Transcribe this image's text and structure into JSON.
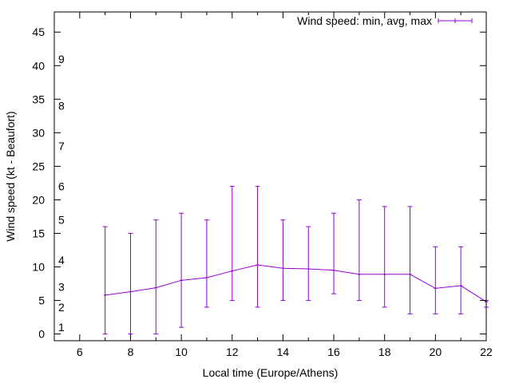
{
  "chart_data": {
    "type": "line",
    "title": "",
    "xlabel": "Local time (Europe/Athens)",
    "ylabel": "Wind speed (kt - Beaufort)",
    "xlim": [
      5,
      22
    ],
    "ylim": [
      -1,
      48
    ],
    "x_ticks": [
      6,
      8,
      10,
      12,
      14,
      16,
      18,
      20,
      22
    ],
    "y_ticks": [
      0,
      5,
      10,
      15,
      20,
      25,
      30,
      35,
      40,
      45
    ],
    "grid": false,
    "legend": {
      "position": "top-right",
      "label": "Wind speed: min, avg, max"
    },
    "beaufort_labels": [
      {
        "label": "1",
        "kt": 1
      },
      {
        "label": "2",
        "kt": 4
      },
      {
        "label": "3",
        "kt": 7
      },
      {
        "label": "4",
        "kt": 11
      },
      {
        "label": "5",
        "kt": 17
      },
      {
        "label": "6",
        "kt": 22
      },
      {
        "label": "7",
        "kt": 28
      },
      {
        "label": "8",
        "kt": 34
      },
      {
        "label": "9",
        "kt": 41
      }
    ],
    "series": [
      {
        "name": "Wind speed: min, avg, max",
        "color": "#9400d3",
        "x": [
          7,
          8,
          9,
          10,
          11,
          12,
          13,
          14,
          15,
          16,
          17,
          18,
          19,
          20,
          21,
          22
        ],
        "avg": [
          5.8,
          6.3,
          6.9,
          8.0,
          8.4,
          9.4,
          10.3,
          9.8,
          9.7,
          9.5,
          8.9,
          8.9,
          8.9,
          6.8,
          7.2,
          4.8
        ],
        "min": [
          0,
          0,
          0,
          1,
          4,
          5,
          4,
          5,
          5,
          6,
          5,
          4,
          3,
          3,
          3,
          4
        ],
        "max": [
          16,
          15,
          17,
          18,
          17,
          22,
          22,
          17,
          16,
          18,
          20,
          19,
          19,
          13,
          13,
          5
        ]
      }
    ]
  }
}
